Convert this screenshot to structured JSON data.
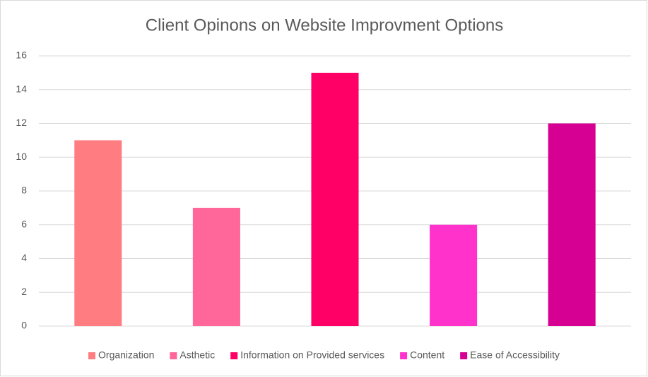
{
  "chart_data": {
    "type": "bar",
    "title": "Client Opinons on Website Improvment Options",
    "categories": [
      "Organization",
      "Asthetic",
      "Information on Provided services",
      "Content",
      "Ease of Accessibility"
    ],
    "values": [
      11,
      7,
      15,
      6,
      12
    ],
    "colors": [
      "#ff7c80",
      "#ff6699",
      "#ff0066",
      "#ff33cc",
      "#d60093"
    ],
    "ylim": [
      0,
      16
    ],
    "yticks": [
      0,
      2,
      4,
      6,
      8,
      10,
      12,
      14,
      16
    ],
    "grid": true,
    "legend": "bottom"
  }
}
